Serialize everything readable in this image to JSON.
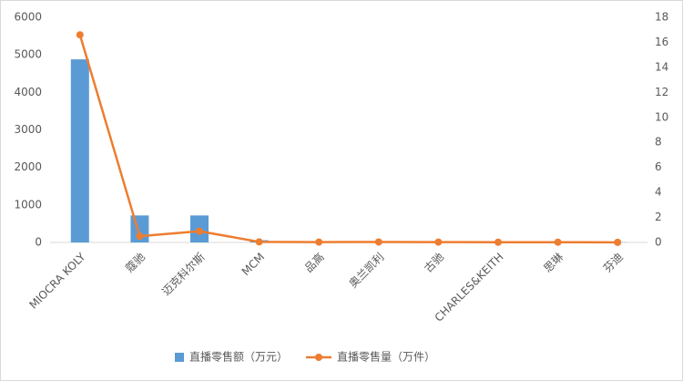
{
  "chart_data": {
    "type": "bar",
    "categories": [
      "MIOCRA KOLY",
      "蔻驰",
      "迈克科尔斯",
      "MCM",
      "品高",
      "奥兰凯利",
      "古驰",
      "CHARLES&KEITH",
      "思琳",
      "芬迪"
    ],
    "series": [
      {
        "name": "直播零售额（万元）",
        "type": "bar",
        "color": "#5b9bd5",
        "values": [
          4880,
          720,
          720,
          60,
          10,
          10,
          10,
          5,
          5,
          5
        ]
      },
      {
        "name": "直播零售量（万件）",
        "type": "line",
        "axis": "y2",
        "color": "#ed7d31",
        "values": [
          16.6,
          0.5,
          0.9,
          0.05,
          0.03,
          0.04,
          0.03,
          0.02,
          0.02,
          0.01
        ]
      }
    ],
    "ylim": [
      0,
      6000
    ],
    "yticks": [
      0,
      1000,
      2000,
      3000,
      4000,
      5000,
      6000
    ],
    "y2lim": [
      0,
      18
    ],
    "y2ticks": [
      0,
      2,
      4,
      6,
      8,
      10,
      12,
      14,
      16,
      18
    ],
    "legend": "bottom"
  }
}
